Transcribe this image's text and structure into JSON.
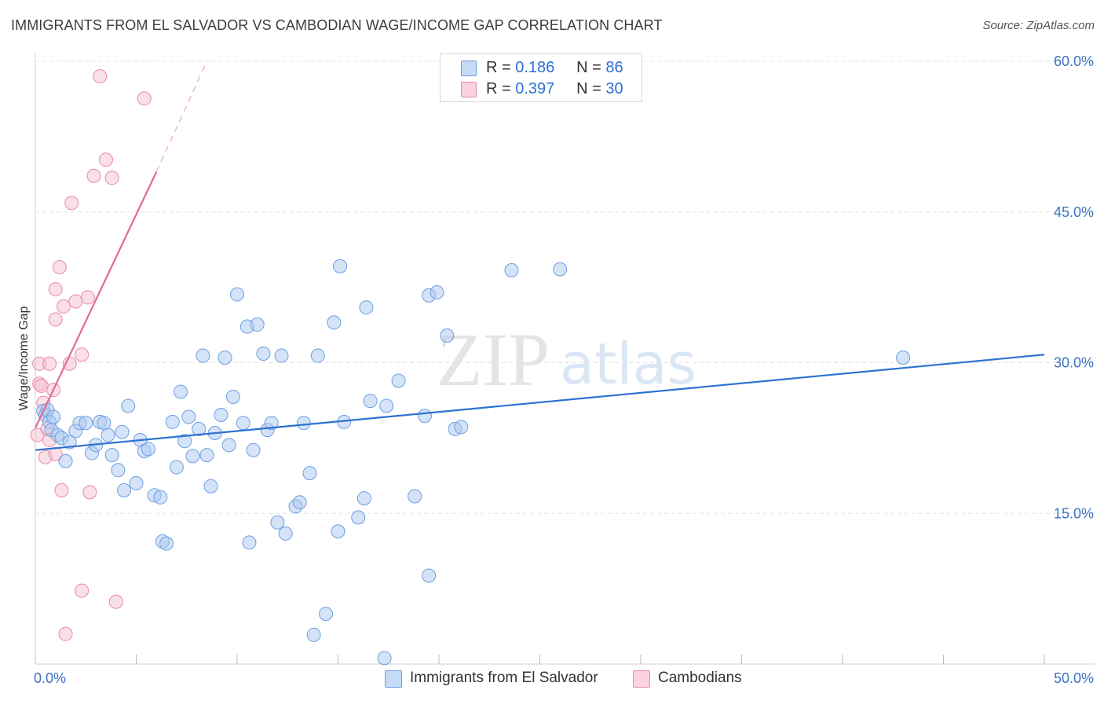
{
  "header": {
    "title": "IMMIGRANTS FROM EL SALVADOR VS CAMBODIAN WAGE/INCOME GAP CORRELATION CHART",
    "source": "Source: ZipAtlas.com"
  },
  "watermark": {
    "zip": "ZIP",
    "atlas": "atlas"
  },
  "legend": {
    "rows": [
      {
        "r_label": "R =",
        "r_value": "0.186",
        "n_label": "N =",
        "n_value": "86"
      },
      {
        "r_label": "R =",
        "r_value": "0.397",
        "n_label": "N =",
        "n_value": "30"
      }
    ]
  },
  "bottom_legend": {
    "series1": "Immigrants from El Salvador",
    "series2": "Cambodians"
  },
  "colors": {
    "blue_fill": "#a9c8f0",
    "blue_stroke": "#6d9fe0",
    "blue_line": "#2e72d2",
    "pink_fill": "#f5b9cb",
    "pink_stroke": "#e88aa7",
    "pink_line": "#e06b96",
    "grid": "#e3e3e3",
    "axis_text": "#3b73c4"
  },
  "chart_data": {
    "type": "scatter",
    "title": "IMMIGRANTS FROM EL SALVADOR VS CAMBODIAN WAGE/INCOME GAP CORRELATION CHART",
    "xlabel": "",
    "ylabel": "Wage/Income Gap",
    "xlim": [
      0,
      50
    ],
    "ylim": [
      0,
      60
    ],
    "x_tick_labels": [
      "0.0%",
      "50.0%"
    ],
    "y_ticks": [
      15,
      30,
      45,
      60
    ],
    "y_tick_labels": [
      "15.0%",
      "30.0%",
      "45.0%",
      "60.0%"
    ],
    "grid": true,
    "legend_position": "top-center",
    "series": [
      {
        "name": "Immigrants from El Salvador",
        "color": "blue",
        "R": 0.186,
        "N": 86,
        "trend": {
          "x": [
            0,
            50
          ],
          "y": [
            21.3,
            30.8
          ]
        },
        "points": [
          [
            0.4,
            25.2
          ],
          [
            0.5,
            24.8
          ],
          [
            0.6,
            25.3
          ],
          [
            0.7,
            24.1
          ],
          [
            0.8,
            23.3
          ],
          [
            0.9,
            24.6
          ],
          [
            1.1,
            22.8
          ],
          [
            1.3,
            22.5
          ],
          [
            1.5,
            20.2
          ],
          [
            1.7,
            22.1
          ],
          [
            2.0,
            23.2
          ],
          [
            2.2,
            24.0
          ],
          [
            2.5,
            24.0
          ],
          [
            2.8,
            21.0
          ],
          [
            3.0,
            21.8
          ],
          [
            3.2,
            24.1
          ],
          [
            3.4,
            24.0
          ],
          [
            3.6,
            22.8
          ],
          [
            3.8,
            20.8
          ],
          [
            4.1,
            19.3
          ],
          [
            4.3,
            23.1
          ],
          [
            4.4,
            17.3
          ],
          [
            4.6,
            25.7
          ],
          [
            5.0,
            18.0
          ],
          [
            5.2,
            22.3
          ],
          [
            5.4,
            21.2
          ],
          [
            5.6,
            21.4
          ],
          [
            5.9,
            16.8
          ],
          [
            6.2,
            16.6
          ],
          [
            6.3,
            12.2
          ],
          [
            6.5,
            12.0
          ],
          [
            6.8,
            24.1
          ],
          [
            7.0,
            19.6
          ],
          [
            7.2,
            27.1
          ],
          [
            7.4,
            22.2
          ],
          [
            7.6,
            24.6
          ],
          [
            7.8,
            20.7
          ],
          [
            8.1,
            23.4
          ],
          [
            8.3,
            30.7
          ],
          [
            8.5,
            20.8
          ],
          [
            8.7,
            17.7
          ],
          [
            8.9,
            23.0
          ],
          [
            9.2,
            24.8
          ],
          [
            9.4,
            30.5
          ],
          [
            9.6,
            21.8
          ],
          [
            9.8,
            26.6
          ],
          [
            10.0,
            36.8
          ],
          [
            10.3,
            24.0
          ],
          [
            10.5,
            33.6
          ],
          [
            10.6,
            12.1
          ],
          [
            10.8,
            21.3
          ],
          [
            11.0,
            33.8
          ],
          [
            11.3,
            30.9
          ],
          [
            11.5,
            23.3
          ],
          [
            11.7,
            24.0
          ],
          [
            12.0,
            14.1
          ],
          [
            12.2,
            30.7
          ],
          [
            12.4,
            13.0
          ],
          [
            12.9,
            15.7
          ],
          [
            13.1,
            16.1
          ],
          [
            13.3,
            24.0
          ],
          [
            13.6,
            19.0
          ],
          [
            13.8,
            2.9
          ],
          [
            14.0,
            30.7
          ],
          [
            14.4,
            5.0
          ],
          [
            14.8,
            34.0
          ],
          [
            15.0,
            13.2
          ],
          [
            15.1,
            39.6
          ],
          [
            15.3,
            24.1
          ],
          [
            16.0,
            14.6
          ],
          [
            16.3,
            16.5
          ],
          [
            16.4,
            35.5
          ],
          [
            16.6,
            26.2
          ],
          [
            17.4,
            25.7
          ],
          [
            17.3,
            0.6
          ],
          [
            18.0,
            28.2
          ],
          [
            18.8,
            16.7
          ],
          [
            19.3,
            24.7
          ],
          [
            19.5,
            8.8
          ],
          [
            19.5,
            36.7
          ],
          [
            19.9,
            37.0
          ],
          [
            20.4,
            32.7
          ],
          [
            20.8,
            23.4
          ],
          [
            21.1,
            23.6
          ],
          [
            23.6,
            39.2
          ],
          [
            26.0,
            39.3
          ],
          [
            43.0,
            30.5
          ]
        ]
      },
      {
        "name": "Cambodians",
        "color": "pink",
        "R": 0.397,
        "N": 30,
        "trend": {
          "x": [
            0,
            6.0
          ],
          "y": [
            23.5,
            49.0
          ]
        },
        "trend_dashed": {
          "x": [
            6.0,
            8.5
          ],
          "y": [
            49.0,
            60.0
          ]
        },
        "points": [
          [
            0.1,
            22.8
          ],
          [
            0.2,
            27.9
          ],
          [
            0.2,
            29.9
          ],
          [
            0.3,
            27.7
          ],
          [
            0.4,
            26.0
          ],
          [
            0.5,
            20.6
          ],
          [
            0.6,
            23.4
          ],
          [
            0.7,
            29.9
          ],
          [
            0.7,
            22.3
          ],
          [
            0.9,
            27.3
          ],
          [
            1.0,
            20.9
          ],
          [
            1.0,
            34.3
          ],
          [
            1.0,
            37.3
          ],
          [
            1.2,
            39.5
          ],
          [
            1.3,
            17.3
          ],
          [
            1.4,
            35.6
          ],
          [
            1.5,
            3.0
          ],
          [
            1.7,
            29.9
          ],
          [
            1.8,
            45.9
          ],
          [
            2.0,
            36.1
          ],
          [
            2.3,
            7.3
          ],
          [
            2.3,
            30.8
          ],
          [
            2.6,
            36.5
          ],
          [
            2.7,
            17.1
          ],
          [
            2.9,
            48.6
          ],
          [
            3.2,
            58.5
          ],
          [
            3.5,
            50.2
          ],
          [
            3.8,
            48.4
          ],
          [
            4.0,
            6.2
          ],
          [
            5.4,
            56.3
          ]
        ]
      }
    ]
  }
}
